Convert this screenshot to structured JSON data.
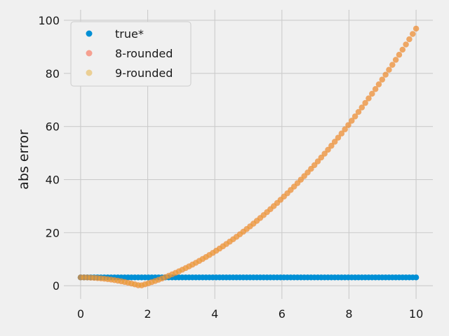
{
  "chart_data": {
    "type": "scatter",
    "title": "",
    "xlabel": "",
    "ylabel": "abs error",
    "xlim": [
      -0.5,
      10.5
    ],
    "ylim": [
      -4.95,
      103.95
    ],
    "xticks": [
      "0",
      "2",
      "4",
      "6",
      "8",
      "10"
    ],
    "yticks": [
      "0",
      "20",
      "40",
      "60",
      "80",
      "100"
    ],
    "grid": true,
    "legend_position": "top-left",
    "x": {
      "start": 0,
      "stop": 10,
      "count": 100
    },
    "series": [
      {
        "name": "true*",
        "color": "#008fd5",
        "alpha": 1.0,
        "formula": "constant",
        "value": 3.14159
      },
      {
        "name": "8-rounded",
        "color": "#fc4f30",
        "alpha": 0.5,
        "formula": "abs(x^2 - pi)"
      },
      {
        "name": "9-rounded",
        "color": "#e5ae38",
        "alpha": 0.5,
        "formula": "abs(x^2 - pi)"
      }
    ]
  }
}
